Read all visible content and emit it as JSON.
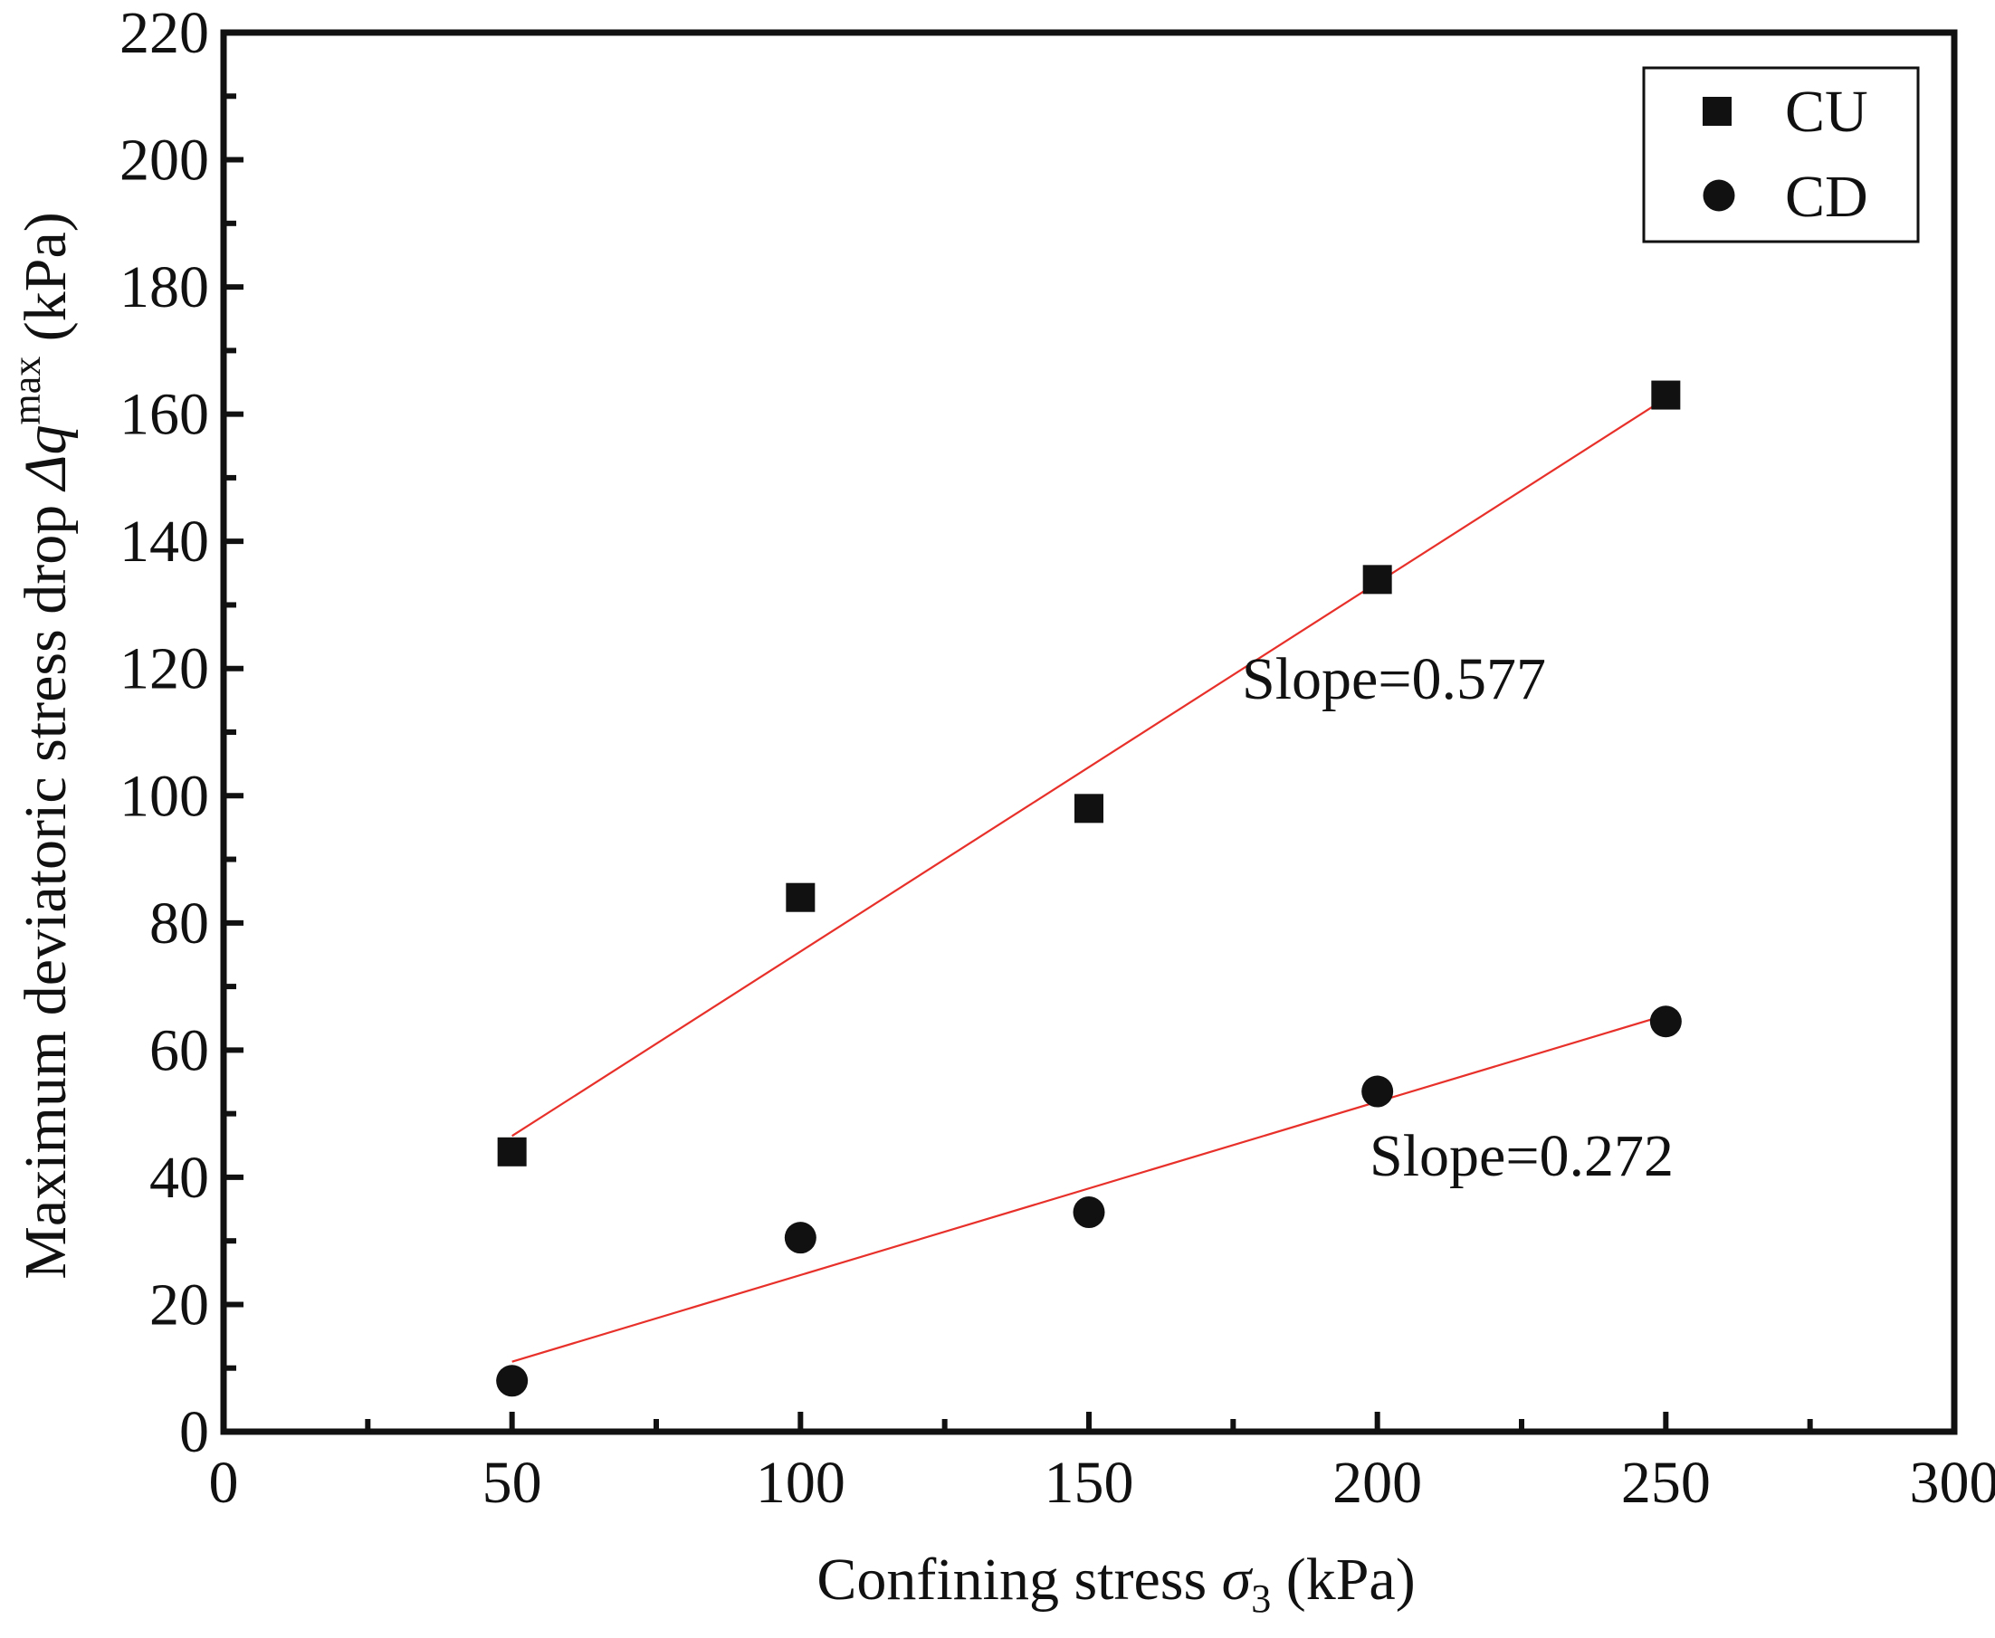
{
  "chart_data": {
    "type": "scatter",
    "title": "",
    "xlabel": {
      "main": "Confining stress ",
      "symbol": "σ",
      "sub": "3",
      "unit": " (kPa)"
    },
    "ylabel": {
      "main": "Maximum deviatoric stress drop ",
      "symbol": "Δq",
      "sup": "max",
      "unit": " (kPa)"
    },
    "xlim": [
      0,
      300
    ],
    "ylim": [
      0,
      220
    ],
    "xticks": [
      0,
      50,
      100,
      150,
      200,
      250,
      300
    ],
    "yticks": [
      0,
      20,
      40,
      60,
      80,
      100,
      120,
      140,
      160,
      180,
      200,
      220
    ],
    "xtick_labels": [
      "0",
      "50",
      "100",
      "150",
      "200",
      "250",
      "300"
    ],
    "ytick_labels": [
      "0",
      "20",
      "40",
      "60",
      "80",
      "100",
      "120",
      "140",
      "160",
      "180",
      "200",
      "220"
    ],
    "grid": false,
    "legend_position": "top-right",
    "series": [
      {
        "name": "CU",
        "marker": "square",
        "color": "#111111",
        "x": [
          50,
          100,
          150,
          200,
          250
        ],
        "y": [
          44,
          84,
          98,
          134,
          163
        ],
        "fit": {
          "color": "#e8302a",
          "x": [
            50,
            250
          ],
          "y": [
            46.5,
            162.5
          ]
        }
      },
      {
        "name": "CD",
        "marker": "circle",
        "color": "#111111",
        "x": [
          50,
          100,
          150,
          200,
          250
        ],
        "y": [
          8,
          30.5,
          34.5,
          53.5,
          64.5
        ],
        "fit": {
          "color": "#e8302a",
          "x": [
            50,
            250
          ],
          "y": [
            11,
            65.5
          ]
        }
      }
    ],
    "annotations": [
      {
        "text": "Slope=0.577",
        "series": "CU"
      },
      {
        "text": "Slope=0.272",
        "series": "CD"
      }
    ]
  }
}
